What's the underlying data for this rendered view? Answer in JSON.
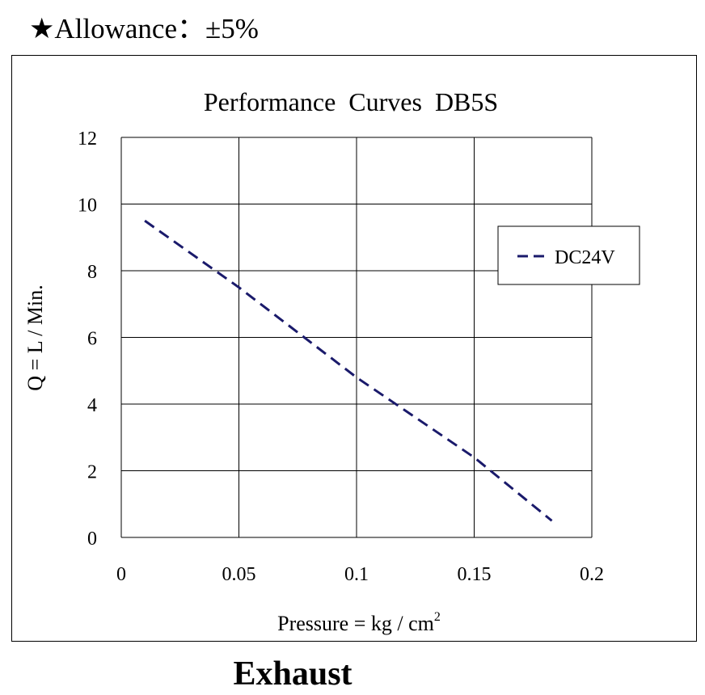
{
  "header": {
    "allowance_text": "★Allowance：±5%"
  },
  "footer": {
    "label": "Exhaust"
  },
  "colors": {
    "series_line": "#1a1a6b",
    "grid": "#000000"
  },
  "chart_data": {
    "type": "line",
    "title": "Performance  Curves  DB5S",
    "xlabel": "Pressure = kg / cm",
    "xlabel_superscript": "2",
    "ylabel": "Q = L / Min.",
    "xlim": [
      0,
      0.2
    ],
    "ylim": [
      0,
      12
    ],
    "x_ticks": [
      "0",
      "0.05",
      "0.1",
      "0.15",
      "0.2"
    ],
    "y_ticks": [
      "0",
      "2",
      "4",
      "6",
      "8",
      "10",
      "12"
    ],
    "grid": true,
    "legend_position": "top-right",
    "series": [
      {
        "name": "DC24V",
        "line_style": "dashed",
        "x": [
          0.01,
          0.05,
          0.1,
          0.15,
          0.183
        ],
        "y": [
          9.5,
          7.5,
          4.8,
          2.4,
          0.5
        ]
      }
    ]
  }
}
